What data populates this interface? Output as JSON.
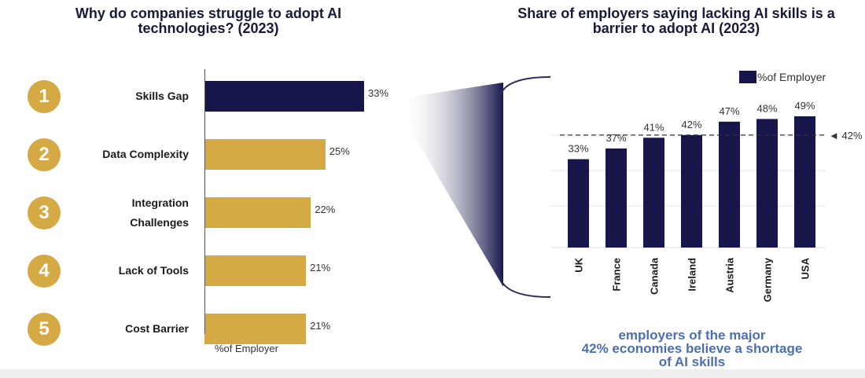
{
  "chart_data": [
    {
      "type": "bar",
      "orientation": "horizontal",
      "title": "Why do companies struggle to adopt AI technologies? (2023)",
      "ranks": [
        "1",
        "2",
        "3",
        "4",
        "5"
      ],
      "categories": [
        "Skills Gap",
        "Data Complexity",
        "Integration Challenges",
        "Lack of Tools",
        "Cost Barrier"
      ],
      "categories_display": [
        [
          "Skills Gap"
        ],
        [
          "Data Complexity"
        ],
        [
          "Integration",
          "Challenges"
        ],
        [
          "Lack of Tools"
        ],
        [
          "Cost Barrier"
        ]
      ],
      "values": [
        33,
        25,
        22,
        21,
        21
      ],
      "value_labels": [
        "33%",
        "25%",
        "22%",
        "21%",
        "21%"
      ],
      "xlabel": "%of Employer",
      "xlim": [
        0,
        33
      ],
      "colors": {
        "highlight": "#16164a",
        "default": "#d5a943"
      }
    },
    {
      "type": "bar",
      "title": "Share of employers saying lacking AI skills is a barrier to adopt AI (2023)",
      "categories": [
        "UK",
        "France",
        "Canada",
        "Ireland",
        "Austria",
        "Germany",
        "USA"
      ],
      "values": [
        33,
        37,
        41,
        42,
        47,
        48,
        49
      ],
      "value_labels": [
        "33%",
        "37%",
        "41%",
        "42%",
        "47%",
        "48%",
        "49%"
      ],
      "legend": "%of Employer",
      "legend_position": "top-right",
      "reference_line": {
        "value": 42,
        "label": "◄ 42%"
      },
      "ylim": [
        0,
        49
      ],
      "colors": {
        "bar": "#16164a"
      }
    }
  ],
  "callout": {
    "line1": "employers of the major",
    "line2": "42% economies believe a shortage",
    "line3": "of AI skills"
  }
}
